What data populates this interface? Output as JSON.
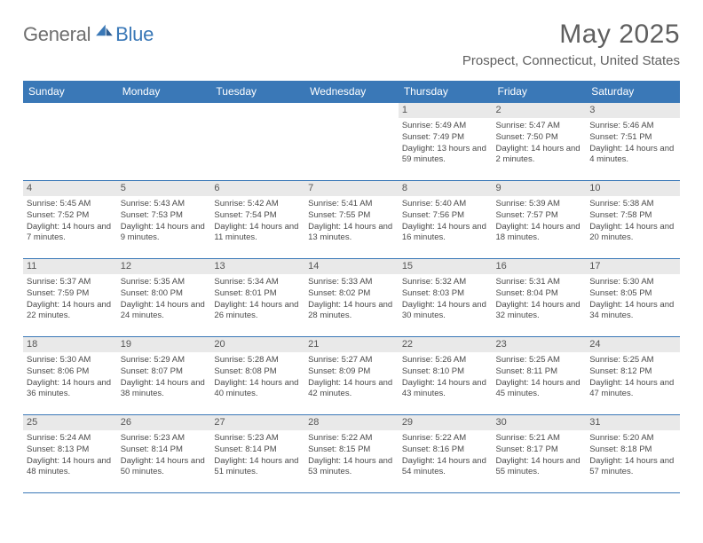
{
  "brand": {
    "part1": "General",
    "part2": "Blue"
  },
  "title": "May 2025",
  "location": "Prospect, Connecticut, United States",
  "colors": {
    "brand_blue": "#3a78b7",
    "header_grey": "#e9e9e9",
    "text_grey": "#5f5f5f",
    "body_text": "#4a4a4a",
    "white": "#ffffff"
  },
  "weekdays": [
    "Sunday",
    "Monday",
    "Tuesday",
    "Wednesday",
    "Thursday",
    "Friday",
    "Saturday"
  ],
  "weeks": [
    [
      {
        "n": "",
        "sr": "",
        "ss": "",
        "dl": "",
        "empty": true
      },
      {
        "n": "",
        "sr": "",
        "ss": "",
        "dl": "",
        "empty": true
      },
      {
        "n": "",
        "sr": "",
        "ss": "",
        "dl": "",
        "empty": true
      },
      {
        "n": "",
        "sr": "",
        "ss": "",
        "dl": "",
        "empty": true
      },
      {
        "n": "1",
        "sr": "Sunrise: 5:49 AM",
        "ss": "Sunset: 7:49 PM",
        "dl": "Daylight: 13 hours and 59 minutes."
      },
      {
        "n": "2",
        "sr": "Sunrise: 5:47 AM",
        "ss": "Sunset: 7:50 PM",
        "dl": "Daylight: 14 hours and 2 minutes."
      },
      {
        "n": "3",
        "sr": "Sunrise: 5:46 AM",
        "ss": "Sunset: 7:51 PM",
        "dl": "Daylight: 14 hours and 4 minutes."
      }
    ],
    [
      {
        "n": "4",
        "sr": "Sunrise: 5:45 AM",
        "ss": "Sunset: 7:52 PM",
        "dl": "Daylight: 14 hours and 7 minutes."
      },
      {
        "n": "5",
        "sr": "Sunrise: 5:43 AM",
        "ss": "Sunset: 7:53 PM",
        "dl": "Daylight: 14 hours and 9 minutes."
      },
      {
        "n": "6",
        "sr": "Sunrise: 5:42 AM",
        "ss": "Sunset: 7:54 PM",
        "dl": "Daylight: 14 hours and 11 minutes."
      },
      {
        "n": "7",
        "sr": "Sunrise: 5:41 AM",
        "ss": "Sunset: 7:55 PM",
        "dl": "Daylight: 14 hours and 13 minutes."
      },
      {
        "n": "8",
        "sr": "Sunrise: 5:40 AM",
        "ss": "Sunset: 7:56 PM",
        "dl": "Daylight: 14 hours and 16 minutes."
      },
      {
        "n": "9",
        "sr": "Sunrise: 5:39 AM",
        "ss": "Sunset: 7:57 PM",
        "dl": "Daylight: 14 hours and 18 minutes."
      },
      {
        "n": "10",
        "sr": "Sunrise: 5:38 AM",
        "ss": "Sunset: 7:58 PM",
        "dl": "Daylight: 14 hours and 20 minutes."
      }
    ],
    [
      {
        "n": "11",
        "sr": "Sunrise: 5:37 AM",
        "ss": "Sunset: 7:59 PM",
        "dl": "Daylight: 14 hours and 22 minutes."
      },
      {
        "n": "12",
        "sr": "Sunrise: 5:35 AM",
        "ss": "Sunset: 8:00 PM",
        "dl": "Daylight: 14 hours and 24 minutes."
      },
      {
        "n": "13",
        "sr": "Sunrise: 5:34 AM",
        "ss": "Sunset: 8:01 PM",
        "dl": "Daylight: 14 hours and 26 minutes."
      },
      {
        "n": "14",
        "sr": "Sunrise: 5:33 AM",
        "ss": "Sunset: 8:02 PM",
        "dl": "Daylight: 14 hours and 28 minutes."
      },
      {
        "n": "15",
        "sr": "Sunrise: 5:32 AM",
        "ss": "Sunset: 8:03 PM",
        "dl": "Daylight: 14 hours and 30 minutes."
      },
      {
        "n": "16",
        "sr": "Sunrise: 5:31 AM",
        "ss": "Sunset: 8:04 PM",
        "dl": "Daylight: 14 hours and 32 minutes."
      },
      {
        "n": "17",
        "sr": "Sunrise: 5:30 AM",
        "ss": "Sunset: 8:05 PM",
        "dl": "Daylight: 14 hours and 34 minutes."
      }
    ],
    [
      {
        "n": "18",
        "sr": "Sunrise: 5:30 AM",
        "ss": "Sunset: 8:06 PM",
        "dl": "Daylight: 14 hours and 36 minutes."
      },
      {
        "n": "19",
        "sr": "Sunrise: 5:29 AM",
        "ss": "Sunset: 8:07 PM",
        "dl": "Daylight: 14 hours and 38 minutes."
      },
      {
        "n": "20",
        "sr": "Sunrise: 5:28 AM",
        "ss": "Sunset: 8:08 PM",
        "dl": "Daylight: 14 hours and 40 minutes."
      },
      {
        "n": "21",
        "sr": "Sunrise: 5:27 AM",
        "ss": "Sunset: 8:09 PM",
        "dl": "Daylight: 14 hours and 42 minutes."
      },
      {
        "n": "22",
        "sr": "Sunrise: 5:26 AM",
        "ss": "Sunset: 8:10 PM",
        "dl": "Daylight: 14 hours and 43 minutes."
      },
      {
        "n": "23",
        "sr": "Sunrise: 5:25 AM",
        "ss": "Sunset: 8:11 PM",
        "dl": "Daylight: 14 hours and 45 minutes."
      },
      {
        "n": "24",
        "sr": "Sunrise: 5:25 AM",
        "ss": "Sunset: 8:12 PM",
        "dl": "Daylight: 14 hours and 47 minutes."
      }
    ],
    [
      {
        "n": "25",
        "sr": "Sunrise: 5:24 AM",
        "ss": "Sunset: 8:13 PM",
        "dl": "Daylight: 14 hours and 48 minutes."
      },
      {
        "n": "26",
        "sr": "Sunrise: 5:23 AM",
        "ss": "Sunset: 8:14 PM",
        "dl": "Daylight: 14 hours and 50 minutes."
      },
      {
        "n": "27",
        "sr": "Sunrise: 5:23 AM",
        "ss": "Sunset: 8:14 PM",
        "dl": "Daylight: 14 hours and 51 minutes."
      },
      {
        "n": "28",
        "sr": "Sunrise: 5:22 AM",
        "ss": "Sunset: 8:15 PM",
        "dl": "Daylight: 14 hours and 53 minutes."
      },
      {
        "n": "29",
        "sr": "Sunrise: 5:22 AM",
        "ss": "Sunset: 8:16 PM",
        "dl": "Daylight: 14 hours and 54 minutes."
      },
      {
        "n": "30",
        "sr": "Sunrise: 5:21 AM",
        "ss": "Sunset: 8:17 PM",
        "dl": "Daylight: 14 hours and 55 minutes."
      },
      {
        "n": "31",
        "sr": "Sunrise: 5:20 AM",
        "ss": "Sunset: 8:18 PM",
        "dl": "Daylight: 14 hours and 57 minutes."
      }
    ]
  ]
}
